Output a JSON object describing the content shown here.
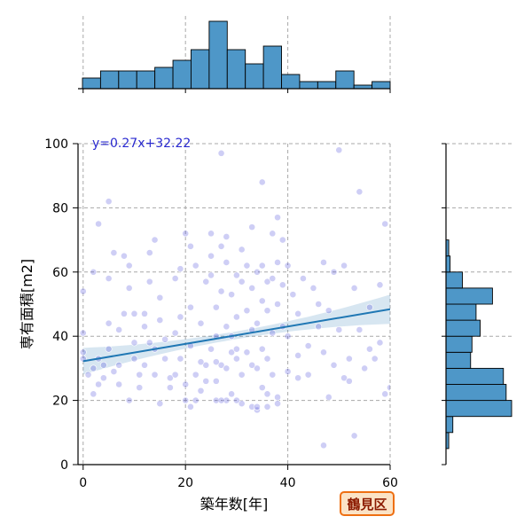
{
  "chart_data": {
    "type": "scatter",
    "xlabel": "築年数[年]",
    "ylabel": "専有面積[m2]",
    "xlim": [
      -1,
      60
    ],
    "ylim": [
      0,
      100
    ],
    "x_ticks": [
      0,
      20,
      40,
      60
    ],
    "y_ticks": [
      0,
      20,
      40,
      60,
      80,
      100
    ],
    "grid": true,
    "regression": {
      "slope": 0.27,
      "intercept": 32.22,
      "label": "y=0.27x+32.22"
    },
    "badge": "鶴見区",
    "x_hist_counts": [
      3,
      5,
      5,
      5,
      6,
      8,
      11,
      19,
      11,
      7,
      12,
      4,
      2,
      2,
      5,
      1,
      2
    ],
    "y_hist_bins": [
      0,
      5,
      10,
      15,
      20,
      25,
      30,
      35,
      40,
      45,
      50,
      55,
      60,
      65,
      70,
      75,
      80,
      85,
      90,
      95,
      100
    ],
    "y_hist_counts": [
      0,
      2,
      5,
      48,
      44,
      42,
      18,
      19,
      25,
      22,
      34,
      12,
      3,
      2,
      0,
      0,
      0,
      0,
      0,
      0
    ],
    "points": [
      [
        0,
        54
      ],
      [
        0,
        41
      ],
      [
        0,
        35
      ],
      [
        0,
        33
      ],
      [
        1,
        28
      ],
      [
        2,
        22
      ],
      [
        2,
        30
      ],
      [
        3,
        33
      ],
      [
        3,
        25
      ],
      [
        4,
        27
      ],
      [
        4,
        31
      ],
      [
        5,
        36
      ],
      [
        5,
        44
      ],
      [
        6,
        29
      ],
      [
        7,
        31
      ],
      [
        7,
        25
      ],
      [
        3,
        75
      ],
      [
        5,
        82
      ],
      [
        5,
        58
      ],
      [
        7,
        42
      ],
      [
        8,
        47
      ],
      [
        8,
        65
      ],
      [
        9,
        62
      ],
      [
        9,
        55
      ],
      [
        10,
        38
      ],
      [
        10,
        33
      ],
      [
        11,
        28
      ],
      [
        11,
        24
      ],
      [
        12,
        47
      ],
      [
        12,
        43
      ],
      [
        12,
        31
      ],
      [
        13,
        38
      ],
      [
        13,
        57
      ],
      [
        13,
        66
      ],
      [
        14,
        36
      ],
      [
        14,
        28
      ],
      [
        15,
        45
      ],
      [
        15,
        52
      ],
      [
        16,
        39
      ],
      [
        16,
        33
      ],
      [
        17,
        27
      ],
      [
        17,
        24
      ],
      [
        18,
        41
      ],
      [
        18,
        58
      ],
      [
        19,
        61
      ],
      [
        19,
        46
      ],
      [
        19,
        33
      ],
      [
        20,
        25
      ],
      [
        20,
        20
      ],
      [
        20,
        72
      ],
      [
        21,
        68
      ],
      [
        21,
        49
      ],
      [
        21,
        37
      ],
      [
        22,
        28
      ],
      [
        22,
        20
      ],
      [
        23,
        23
      ],
      [
        23,
        44
      ],
      [
        24,
        31
      ],
      [
        24,
        26
      ],
      [
        24,
        57
      ],
      [
        25,
        72
      ],
      [
        25,
        65
      ],
      [
        25,
        59
      ],
      [
        25,
        36
      ],
      [
        26,
        40
      ],
      [
        26,
        26
      ],
      [
        26,
        20
      ],
      [
        26,
        49
      ],
      [
        27,
        68
      ],
      [
        27,
        54
      ],
      [
        27,
        31
      ],
      [
        27,
        97
      ],
      [
        28,
        71
      ],
      [
        28,
        63
      ],
      [
        28,
        43
      ],
      [
        28,
        20
      ],
      [
        29,
        53
      ],
      [
        29,
        35
      ],
      [
        29,
        22
      ],
      [
        30,
        59
      ],
      [
        30,
        46
      ],
      [
        30,
        36
      ],
      [
        31,
        28
      ],
      [
        31,
        19
      ],
      [
        31,
        67
      ],
      [
        32,
        62
      ],
      [
        32,
        48
      ],
      [
        32,
        35
      ],
      [
        33,
        74
      ],
      [
        33,
        55
      ],
      [
        33,
        42
      ],
      [
        33,
        18
      ],
      [
        34,
        60
      ],
      [
        34,
        44
      ],
      [
        34,
        30
      ],
      [
        34,
        17
      ],
      [
        35,
        88
      ],
      [
        35,
        62
      ],
      [
        35,
        51
      ],
      [
        35,
        36
      ],
      [
        35,
        24
      ],
      [
        36,
        57
      ],
      [
        36,
        48
      ],
      [
        36,
        33
      ],
      [
        36,
        22
      ],
      [
        37,
        72
      ],
      [
        37,
        58
      ],
      [
        37,
        41
      ],
      [
        37,
        28
      ],
      [
        38,
        63
      ],
      [
        38,
        50
      ],
      [
        38,
        77
      ],
      [
        38,
        19
      ],
      [
        39,
        70
      ],
      [
        39,
        56
      ],
      [
        39,
        43
      ],
      [
        40,
        62
      ],
      [
        40,
        40
      ],
      [
        41,
        53
      ],
      [
        42,
        47
      ],
      [
        42,
        34
      ],
      [
        43,
        58
      ],
      [
        44,
        28
      ],
      [
        45,
        55
      ],
      [
        46,
        43
      ],
      [
        46,
        50
      ],
      [
        47,
        63
      ],
      [
        47,
        35
      ],
      [
        47,
        6
      ],
      [
        48,
        48
      ],
      [
        49,
        60
      ],
      [
        49,
        31
      ],
      [
        50,
        98
      ],
      [
        50,
        42
      ],
      [
        51,
        62
      ],
      [
        51,
        27
      ],
      [
        52,
        33
      ],
      [
        53,
        55
      ],
      [
        53,
        9
      ],
      [
        54,
        85
      ],
      [
        54,
        42
      ],
      [
        55,
        30
      ],
      [
        56,
        49
      ],
      [
        57,
        33
      ],
      [
        58,
        38
      ],
      [
        58,
        56
      ],
      [
        59,
        75
      ],
      [
        59,
        22
      ],
      [
        2,
        60
      ],
      [
        6,
        66
      ],
      [
        14,
        70
      ],
      [
        22,
        62
      ],
      [
        30,
        33
      ],
      [
        44,
        37
      ],
      [
        10,
        47
      ],
      [
        18,
        28
      ],
      [
        36,
        18
      ],
      [
        40,
        29
      ],
      [
        26,
        32
      ],
      [
        33,
        31
      ],
      [
        23,
        32
      ],
      [
        29,
        40
      ],
      [
        31,
        57
      ],
      [
        42,
        27
      ],
      [
        48,
        21
      ],
      [
        52,
        26
      ],
      [
        56,
        36
      ],
      [
        60,
        24
      ],
      [
        9,
        20
      ],
      [
        15,
        19
      ],
      [
        21,
        18
      ],
      [
        27,
        20
      ],
      [
        30,
        20
      ],
      [
        34,
        18
      ],
      [
        38,
        21
      ],
      [
        28,
        30
      ]
    ]
  }
}
